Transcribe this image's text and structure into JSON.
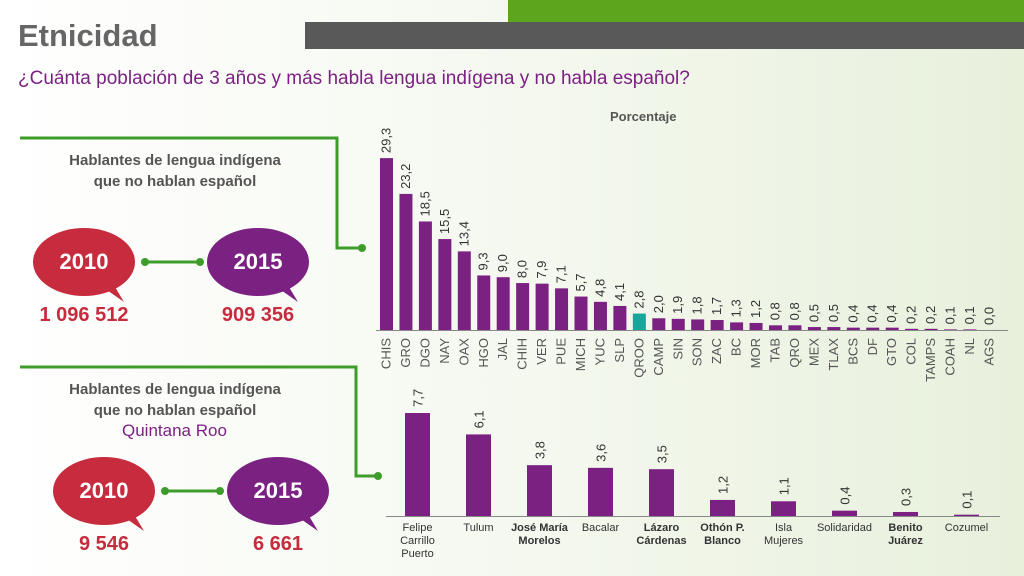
{
  "title": "Etnicidad",
  "subtitle": "¿Cuánta población de 3 años y más habla lengua indígena y no habla español?",
  "top_box": {
    "heading_line1": "Hablantes de lengua indígena",
    "heading_line2": "que no hablan español",
    "year_a": "2010",
    "year_b": "2015",
    "count_a": "1 096 512",
    "count_b": "909 356"
  },
  "bottom_box": {
    "heading_line1": "Hablantes de lengua indígena",
    "heading_line2": "que no hablan español",
    "region": "Quintana Roo",
    "year_a": "2010",
    "year_b": "2015",
    "count_a": "9 546",
    "count_b": "6 661"
  },
  "colors": {
    "bar": "#7b2182",
    "highlight": "#1aa59a",
    "bubble_a": "#c72c3e",
    "bubble_b": "#7b2182",
    "connector": "#3e9d2a"
  },
  "chart_data": [
    {
      "type": "bar",
      "title": "Porcentaje",
      "categories": [
        "CHIS",
        "GRO",
        "DGO",
        "NAY",
        "OAX",
        "HGO",
        "JAL",
        "CHIH",
        "VER",
        "PUE",
        "MICH",
        "YUC",
        "SLP",
        "QROO",
        "CAMP",
        "SIN",
        "SON",
        "ZAC",
        "BC",
        "MOR",
        "TAB",
        "QRO",
        "MEX",
        "TLAX",
        "BCS",
        "DF",
        "GTO",
        "COL",
        "TAMPS",
        "COAH",
        "NL",
        "AGS"
      ],
      "values": [
        29.3,
        23.2,
        18.5,
        15.5,
        13.4,
        9.3,
        9.0,
        8.0,
        7.9,
        7.1,
        5.7,
        4.8,
        4.1,
        2.8,
        2.0,
        1.9,
        1.8,
        1.7,
        1.3,
        1.2,
        0.8,
        0.8,
        0.5,
        0.5,
        0.4,
        0.4,
        0.4,
        0.2,
        0.2,
        0.1,
        0.1,
        0.0
      ],
      "value_labels": [
        "29,3",
        "23,2",
        "18,5",
        "15,5",
        "13,4",
        "9,3",
        "9,0",
        "8,0",
        "7,9",
        "7,1",
        "5,7",
        "4,8",
        "4,1",
        "2,8",
        "2,0",
        "1,9",
        "1,8",
        "1,7",
        "1,3",
        "1,2",
        "0,8",
        "0,8",
        "0,5",
        "0,5",
        "0,4",
        "0,4",
        "0,4",
        "0,2",
        "0,2",
        "0,1",
        "0,1",
        "0,0"
      ],
      "highlight_category": "QROO",
      "ylim": [
        0,
        30
      ]
    },
    {
      "type": "bar",
      "categories": [
        [
          "Felipe",
          "Carrillo",
          "Puerto"
        ],
        [
          "Tulum"
        ],
        [
          "José María",
          "Morelos"
        ],
        [
          "Bacalar"
        ],
        [
          "Lázaro",
          "Cárdenas"
        ],
        [
          "Othón P.",
          "Blanco"
        ],
        [
          "Isla",
          "Mujeres"
        ],
        [
          "Solidaridad"
        ],
        [
          "Benito",
          "Juárez"
        ],
        [
          "Cozumel"
        ]
      ],
      "bold_categories": [
        2,
        4,
        5,
        8
      ],
      "values": [
        7.7,
        6.1,
        3.8,
        3.6,
        3.5,
        1.2,
        1.1,
        0.4,
        0.3,
        0.1
      ],
      "value_labels": [
        "7,7",
        "6,1",
        "3,8",
        "3,6",
        "3,5",
        "1,2",
        "1,1",
        "0,4",
        "0,3",
        "0,1"
      ],
      "ylim": [
        0,
        8
      ]
    }
  ]
}
